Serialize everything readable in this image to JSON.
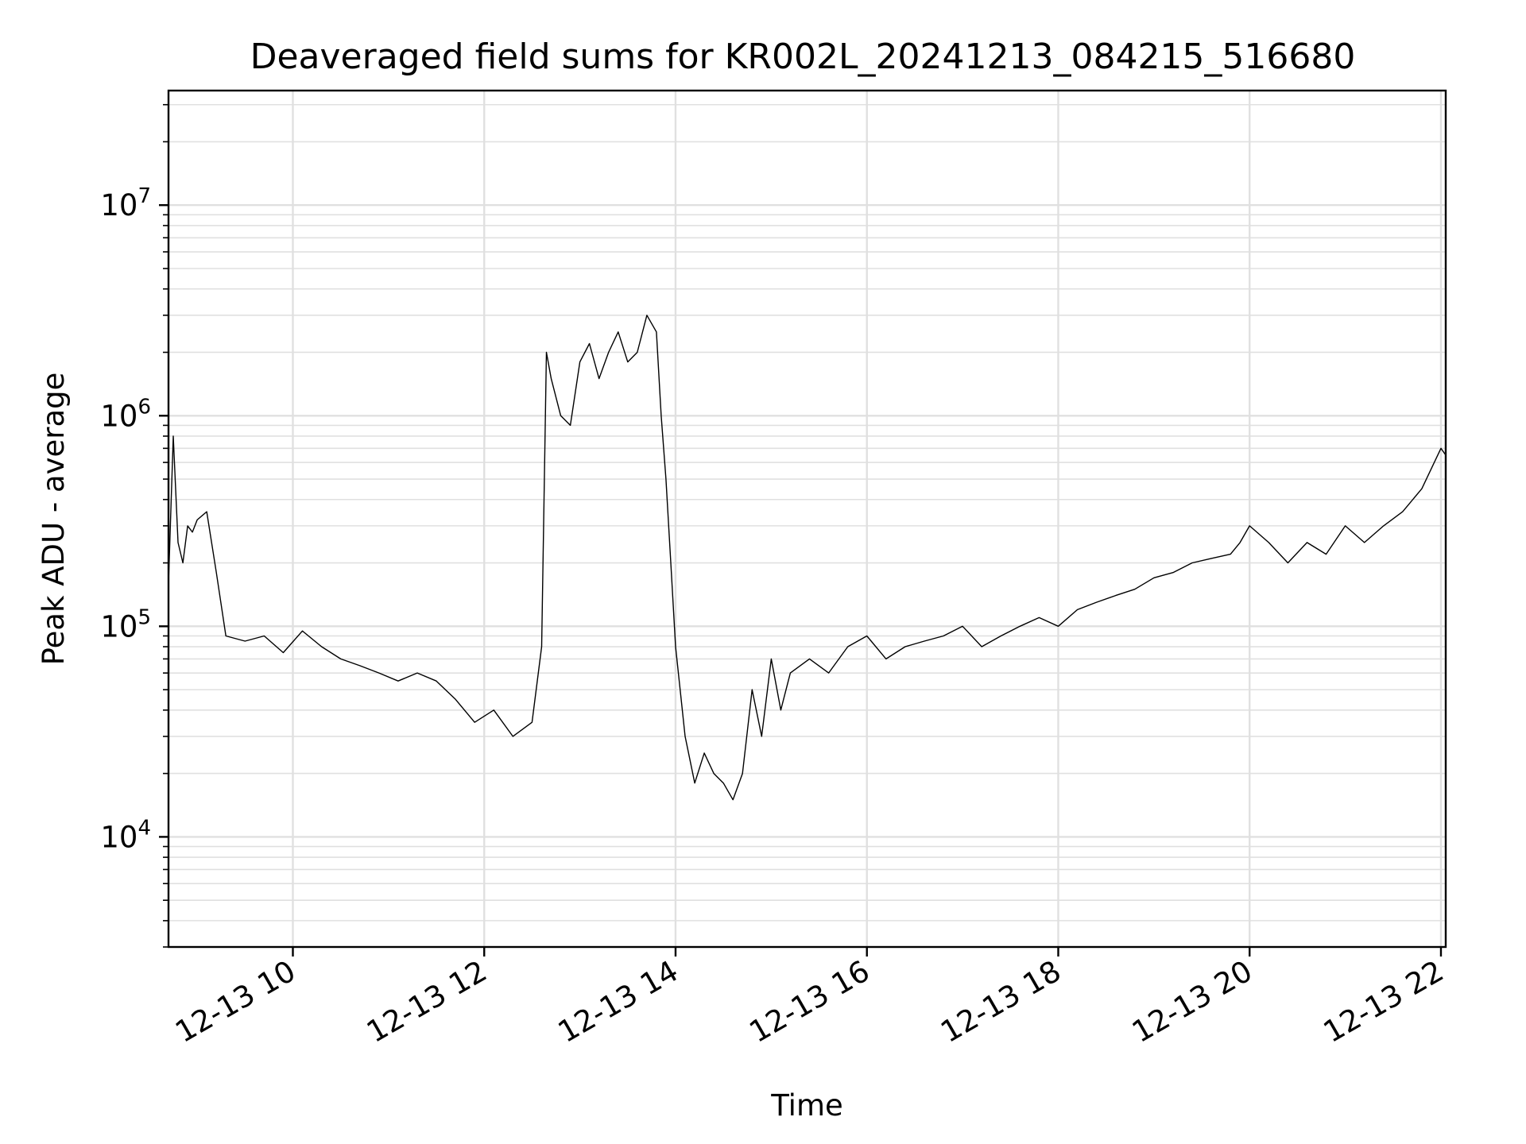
{
  "chart_data": {
    "type": "line",
    "title": "Deaveraged field sums for KR002L_20241213_084215_516680",
    "xlabel": "Time",
    "ylabel": "Peak ADU - average",
    "y_scale": "log",
    "grid": true,
    "x_unit": "hours on 2024-12-13",
    "xlim": [
      8.7,
      22.05
    ],
    "ylim": [
      3000,
      35000000
    ],
    "x_ticks": [
      {
        "value": 10,
        "label": "12-13 10"
      },
      {
        "value": 12,
        "label": "12-13 12"
      },
      {
        "value": 14,
        "label": "12-13 14"
      },
      {
        "value": 16,
        "label": "12-13 16"
      },
      {
        "value": 18,
        "label": "12-13 18"
      },
      {
        "value": 20,
        "label": "12-13 20"
      },
      {
        "value": 22,
        "label": "12-13 22"
      }
    ],
    "y_ticks": [
      {
        "value": 10000,
        "base": "10",
        "exp": "4"
      },
      {
        "value": 100000,
        "base": "10",
        "exp": "5"
      },
      {
        "value": 1000000,
        "base": "10",
        "exp": "6"
      },
      {
        "value": 10000000,
        "base": "10",
        "exp": "7"
      }
    ],
    "series": [
      {
        "name": "Peak ADU - average",
        "x": [
          8.7,
          8.75,
          8.8,
          8.85,
          8.9,
          8.95,
          9.0,
          9.1,
          9.2,
          9.3,
          9.5,
          9.7,
          9.9,
          10.1,
          10.3,
          10.5,
          10.7,
          10.9,
          11.1,
          11.3,
          11.5,
          11.7,
          11.9,
          12.1,
          12.3,
          12.5,
          12.6,
          12.65,
          12.7,
          12.8,
          12.9,
          13.0,
          13.1,
          13.2,
          13.3,
          13.4,
          13.5,
          13.6,
          13.7,
          13.8,
          13.85,
          13.9,
          13.95,
          14.0,
          14.1,
          14.2,
          14.3,
          14.4,
          14.5,
          14.6,
          14.7,
          14.8,
          14.9,
          15.0,
          15.1,
          15.2,
          15.4,
          15.6,
          15.8,
          16.0,
          16.2,
          16.4,
          16.6,
          16.8,
          17.0,
          17.2,
          17.4,
          17.6,
          17.8,
          18.0,
          18.2,
          18.4,
          18.6,
          18.8,
          19.0,
          19.2,
          19.4,
          19.6,
          19.8,
          19.9,
          20.0,
          20.2,
          20.4,
          20.6,
          20.8,
          21.0,
          21.2,
          21.4,
          21.6,
          21.8,
          22.0,
          22.05
        ],
        "y": [
          160000,
          800000,
          250000,
          200000,
          300000,
          280000,
          320000,
          350000,
          180000,
          90000,
          85000,
          90000,
          75000,
          95000,
          80000,
          70000,
          65000,
          60000,
          55000,
          60000,
          55000,
          45000,
          35000,
          40000,
          30000,
          35000,
          80000,
          2000000,
          1500000,
          1000000,
          900000,
          1800000,
          2200000,
          1500000,
          2000000,
          2500000,
          1800000,
          2000000,
          3000000,
          2500000,
          1000000,
          500000,
          200000,
          80000,
          30000,
          18000,
          25000,
          20000,
          18000,
          15000,
          20000,
          50000,
          30000,
          70000,
          40000,
          60000,
          70000,
          60000,
          80000,
          90000,
          70000,
          80000,
          85000,
          90000,
          100000,
          80000,
          90000,
          100000,
          110000,
          100000,
          120000,
          130000,
          140000,
          150000,
          170000,
          180000,
          200000,
          210000,
          220000,
          250000,
          300000,
          250000,
          200000,
          250000,
          220000,
          300000,
          250000,
          300000,
          350000,
          450000,
          700000,
          650000
        ]
      }
    ]
  }
}
